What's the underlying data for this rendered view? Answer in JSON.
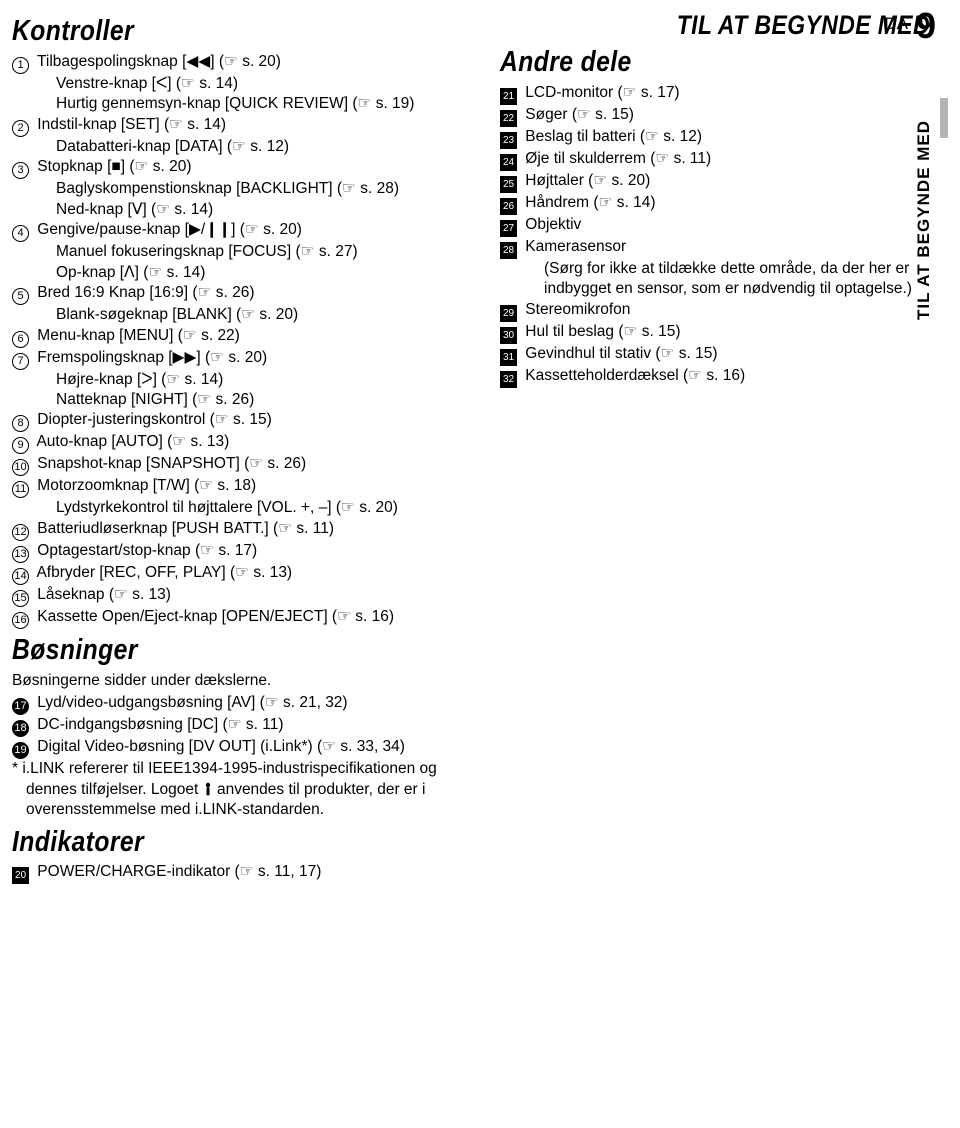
{
  "page_header": {
    "section": "TIL AT BEGYNDE MED",
    "lang": "DA",
    "num": "9"
  },
  "side_tab": "TIL AT BEGYNDE MED",
  "left": {
    "sec1_title": "Kontroller",
    "items1": [
      {
        "m": "c",
        "n": "1",
        "lines": [
          "Tilbagespolingsknap [◀◀] (☞ s. 20)",
          "Venstre-knap [ᐸ] (☞ s. 14)",
          "Hurtig gennemsyn-knap [QUICK REVIEW] (☞ s. 19)"
        ]
      },
      {
        "m": "c",
        "n": "2",
        "lines": [
          "Indstil-knap [SET] (☞ s. 14)",
          "Databatteri-knap [DATA] (☞ s. 12)"
        ]
      },
      {
        "m": "c",
        "n": "3",
        "lines": [
          "Stopknap [■] (☞ s. 20)",
          "Baglyskompenstionsknap [BACKLIGHT] (☞ s. 28)",
          "Ned-knap [ᐯ] (☞ s. 14)"
        ]
      },
      {
        "m": "c",
        "n": "4",
        "lines": [
          "Gengive/pause-knap [▶/❙❙] (☞ s. 20)",
          "Manuel fokuseringsknap [FOCUS] (☞ s. 27)",
          "Op-knap [ᐱ] (☞ s. 14)"
        ]
      },
      {
        "m": "c",
        "n": "5",
        "lines": [
          "Bred 16:9 Knap [16:9] (☞ s. 26)",
          "Blank-søgeknap [BLANK] (☞ s. 20)"
        ]
      },
      {
        "m": "c",
        "n": "6",
        "lines": [
          "Menu-knap [MENU] (☞ s. 22)"
        ]
      },
      {
        "m": "c",
        "n": "7",
        "lines": [
          "Fremspolingsknap [▶▶] (☞ s. 20)",
          "Højre-knap [ᐳ] (☞ s. 14)",
          "Natteknap [NIGHT] (☞ s. 26)"
        ]
      },
      {
        "m": "c",
        "n": "8",
        "lines": [
          "Diopter-justeringskontrol (☞ s. 15)"
        ]
      },
      {
        "m": "c",
        "n": "9",
        "lines": [
          "Auto-knap [AUTO] (☞ s. 13)"
        ]
      },
      {
        "m": "c",
        "n": "10",
        "lines": [
          "Snapshot-knap [SNAPSHOT] (☞ s. 26)"
        ]
      },
      {
        "m": "c",
        "n": "11",
        "lines": [
          "Motorzoomknap [T/W] (☞ s. 18)",
          "Lydstyrkekontrol til højttalere [VOL. +, –] (☞ s. 20)"
        ]
      },
      {
        "m": "c",
        "n": "12",
        "lines": [
          "Batteriudløserknap [PUSH BATT.] (☞ s. 11)"
        ]
      },
      {
        "m": "c",
        "n": "13",
        "lines": [
          "Optagestart/stop-knap (☞ s. 17)"
        ]
      },
      {
        "m": "c",
        "n": "14",
        "lines": [
          "Afbryder [REC, OFF, PLAY] (☞ s. 13)"
        ]
      },
      {
        "m": "c",
        "n": "15",
        "lines": [
          "Låseknap (☞ s. 13)"
        ]
      },
      {
        "m": "c",
        "n": "16",
        "lines": [
          "Kassette Open/Eject-knap [OPEN/EJECT] (☞ s. 16)"
        ]
      }
    ],
    "sec2_title": "Bøsninger",
    "intro2": "Bøsningerne sidder under dækslerne.",
    "items2": [
      {
        "m": "cs",
        "n": "17",
        "lines": [
          "Lyd/video-udgangsbøsning [AV] (☞ s. 21, 32)"
        ]
      },
      {
        "m": "cs",
        "n": "18",
        "lines": [
          "DC-indgangsbøsning [DC] (☞ s. 11)"
        ]
      },
      {
        "m": "cs",
        "n": "19",
        "lines": [
          "Digital Video-bøsning [DV OUT] (i.Link*) (☞ s. 33, 34)"
        ]
      }
    ],
    "note2": "* i.LINK refererer til IEEE1394-1995-industrispecifikationen og dennes tilføjelser. Logoet  anvendes til produkter, der er i overensstemmelse med i.LINK-standarden.",
    "sec3_title": "Indikatorer",
    "items3": [
      {
        "m": "sq",
        "n": "20",
        "lines": [
          "POWER/CHARGE-indikator (☞ s. 11, 17)"
        ]
      }
    ]
  },
  "right": {
    "sec_title": "Andre dele",
    "items": [
      {
        "m": "sq",
        "n": "21",
        "lines": [
          "LCD-monitor (☞ s. 17)"
        ]
      },
      {
        "m": "sq",
        "n": "22",
        "lines": [
          "Søger (☞ s. 15)"
        ]
      },
      {
        "m": "sq",
        "n": "23",
        "lines": [
          "Beslag til batteri (☞ s. 12)"
        ]
      },
      {
        "m": "sq",
        "n": "24",
        "lines": [
          "Øje til skulderrem (☞ s. 11)"
        ]
      },
      {
        "m": "sq",
        "n": "25",
        "lines": [
          "Højttaler (☞ s. 20)"
        ]
      },
      {
        "m": "sq",
        "n": "26",
        "lines": [
          "Håndrem (☞ s. 14)"
        ]
      },
      {
        "m": "sq",
        "n": "27",
        "lines": [
          "Objektiv"
        ]
      },
      {
        "m": "sq",
        "n": "28",
        "lines": [
          "Kamerasensor",
          "(Sørg for ikke at tildække dette område, da der her er indbygget en sensor, som er nødvendig til optagelse.)"
        ]
      },
      {
        "m": "sq",
        "n": "29",
        "lines": [
          "Stereomikrofon"
        ]
      },
      {
        "m": "sq",
        "n": "30",
        "lines": [
          "Hul til beslag (☞ s. 15)"
        ]
      },
      {
        "m": "sq",
        "n": "31",
        "lines": [
          "Gevindhul til stativ (☞ s. 15)"
        ]
      },
      {
        "m": "sq",
        "n": "32",
        "lines": [
          "Kassetteholderdæksel (☞ s. 16)"
        ]
      }
    ]
  }
}
